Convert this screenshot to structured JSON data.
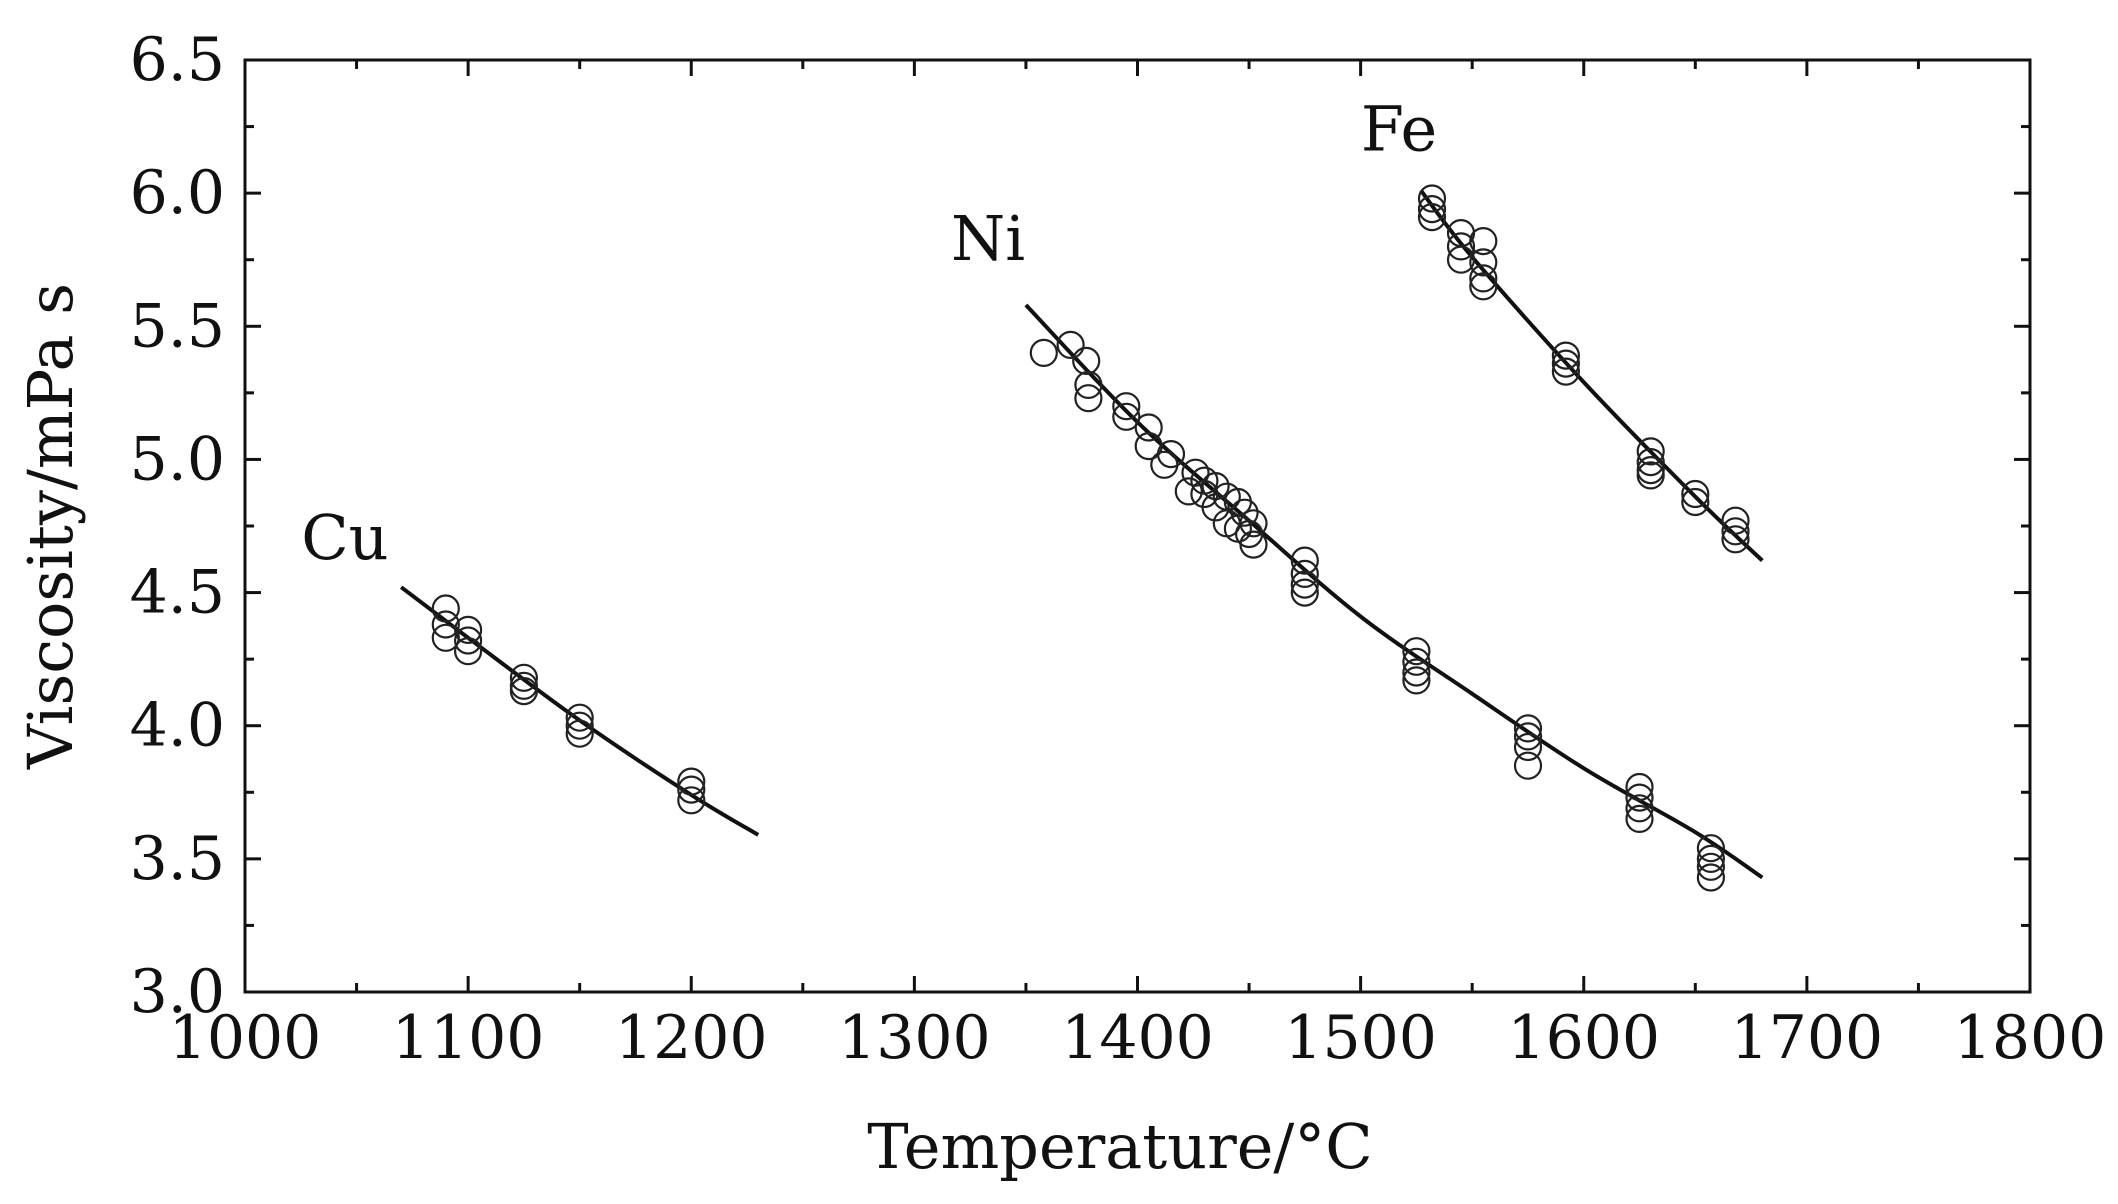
{
  "chart_data": {
    "type": "scatter",
    "title": "",
    "xlabel": "Temperature/°C",
    "ylabel": "Viscosity/mPa s",
    "xlim": [
      1000,
      1800
    ],
    "ylim": [
      3.0,
      6.5
    ],
    "grid": false,
    "legend": "none",
    "x_ticks": [
      "1000",
      "1100",
      "1200",
      "1300",
      "1400",
      "1500",
      "1600",
      "1700",
      "1800"
    ],
    "y_ticks": [
      "3.0",
      "3.5",
      "4.0",
      "4.5",
      "5.0",
      "5.5",
      "6.0",
      "6.5"
    ],
    "series": [
      {
        "name": "Cu",
        "marker": "open-circle",
        "points": [
          [
            1090,
            4.44
          ],
          [
            1090,
            4.38
          ],
          [
            1090,
            4.33
          ],
          [
            1100,
            4.36
          ],
          [
            1100,
            4.32
          ],
          [
            1100,
            4.28
          ],
          [
            1125,
            4.18
          ],
          [
            1125,
            4.15
          ],
          [
            1125,
            4.13
          ],
          [
            1150,
            4.03
          ],
          [
            1150,
            4.0
          ],
          [
            1150,
            3.97
          ],
          [
            1200,
            3.79
          ],
          [
            1200,
            3.76
          ],
          [
            1200,
            3.72
          ]
        ],
        "fit": [
          [
            1070,
            4.52
          ],
          [
            1100,
            4.33
          ],
          [
            1150,
            4.02
          ],
          [
            1200,
            3.74
          ],
          [
            1230,
            3.59
          ]
        ]
      },
      {
        "name": "Ni",
        "marker": "open-circle",
        "points": [
          [
            1358,
            5.4
          ],
          [
            1370,
            5.43
          ],
          [
            1377,
            5.37
          ],
          [
            1378,
            5.28
          ],
          [
            1378,
            5.23
          ],
          [
            1395,
            5.2
          ],
          [
            1395,
            5.16
          ],
          [
            1405,
            5.12
          ],
          [
            1405,
            5.05
          ],
          [
            1412,
            4.98
          ],
          [
            1415,
            5.02
          ],
          [
            1423,
            4.88
          ],
          [
            1426,
            4.95
          ],
          [
            1430,
            4.92
          ],
          [
            1430,
            4.87
          ],
          [
            1435,
            4.9
          ],
          [
            1435,
            4.82
          ],
          [
            1440,
            4.86
          ],
          [
            1440,
            4.76
          ],
          [
            1445,
            4.84
          ],
          [
            1445,
            4.74
          ],
          [
            1448,
            4.8
          ],
          [
            1450,
            4.72
          ],
          [
            1452,
            4.68
          ],
          [
            1452,
            4.76
          ],
          [
            1475,
            4.62
          ],
          [
            1475,
            4.57
          ],
          [
            1475,
            4.53
          ],
          [
            1475,
            4.5
          ],
          [
            1525,
            4.28
          ],
          [
            1525,
            4.24
          ],
          [
            1525,
            4.2
          ],
          [
            1525,
            4.17
          ],
          [
            1575,
            3.99
          ],
          [
            1575,
            3.96
          ],
          [
            1575,
            3.92
          ],
          [
            1575,
            3.85
          ],
          [
            1625,
            3.77
          ],
          [
            1625,
            3.73
          ],
          [
            1625,
            3.69
          ],
          [
            1625,
            3.65
          ],
          [
            1657,
            3.54
          ],
          [
            1657,
            3.5
          ],
          [
            1657,
            3.47
          ],
          [
            1657,
            3.43
          ]
        ],
        "fit": [
          [
            1350,
            5.58
          ],
          [
            1400,
            5.14
          ],
          [
            1450,
            4.77
          ],
          [
            1500,
            4.41
          ],
          [
            1550,
            4.12
          ],
          [
            1600,
            3.84
          ],
          [
            1650,
            3.6
          ],
          [
            1680,
            3.43
          ]
        ]
      },
      {
        "name": "Fe",
        "marker": "open-circle",
        "points": [
          [
            1532,
            5.98
          ],
          [
            1532,
            5.94
          ],
          [
            1532,
            5.91
          ],
          [
            1545,
            5.85
          ],
          [
            1545,
            5.8
          ],
          [
            1545,
            5.75
          ],
          [
            1555,
            5.82
          ],
          [
            1555,
            5.74
          ],
          [
            1555,
            5.68
          ],
          [
            1555,
            5.65
          ],
          [
            1592,
            5.39
          ],
          [
            1592,
            5.36
          ],
          [
            1592,
            5.33
          ],
          [
            1630,
            5.03
          ],
          [
            1630,
            4.99
          ],
          [
            1630,
            4.96
          ],
          [
            1630,
            4.94
          ],
          [
            1650,
            4.87
          ],
          [
            1650,
            4.84
          ],
          [
            1668,
            4.77
          ],
          [
            1668,
            4.73
          ],
          [
            1668,
            4.7
          ]
        ],
        "fit": [
          [
            1527,
            6.01
          ],
          [
            1550,
            5.76
          ],
          [
            1600,
            5.29
          ],
          [
            1650,
            4.86
          ],
          [
            1680,
            4.62
          ]
        ]
      }
    ]
  }
}
